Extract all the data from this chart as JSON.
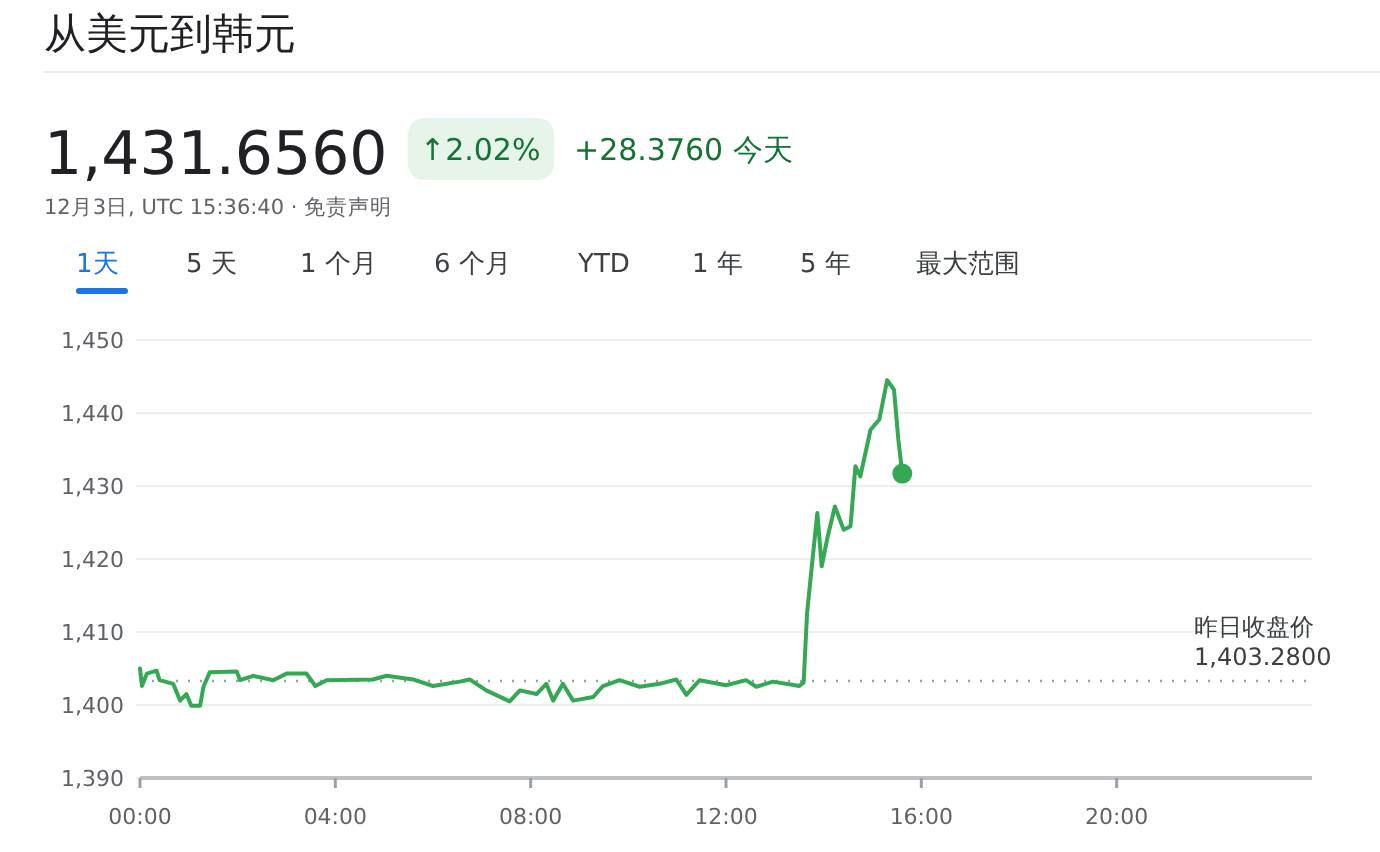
{
  "chart_data": {
    "type": "line",
    "title": "从美元到韩元",
    "annotations": [
      "1,431.6560",
      "↑2.02%",
      "+28.3760 今天",
      "12月3日, UTC 15:36:40 · 免责声明",
      "1天",
      "5 天",
      "1 个月",
      "6 个月",
      "YTD",
      "1 年",
      "5 年",
      "最大范围"
    ],
    "xlim": [
      0,
      24
    ],
    "ylim": [
      1390,
      1450
    ],
    "xticks": [
      {
        "value": 0,
        "label": "00:00"
      },
      {
        "value": 4,
        "label": "04:00"
      },
      {
        "value": 8,
        "label": "08:00"
      },
      {
        "value": 12,
        "label": "12:00"
      },
      {
        "value": 16,
        "label": "16:00"
      },
      {
        "value": 20,
        "label": "20:00"
      }
    ],
    "yticks": [
      {
        "value": 1390,
        "label": "1,390"
      },
      {
        "value": 1400,
        "label": "1,400"
      },
      {
        "value": 1410,
        "label": "1,410"
      },
      {
        "value": 1420,
        "label": "1,420"
      },
      {
        "value": 1430,
        "label": "1,430"
      },
      {
        "value": 1440,
        "label": "1,440"
      },
      {
        "value": 1450,
        "label": "1,450"
      }
    ],
    "grid": "y",
    "line_style": "solid",
    "ref_lines": [
      {
        "axis": "y",
        "value": 1403.28,
        "label": "昨日收盘价 1,403.2800",
        "color": "#9aa0a6",
        "line_style": "dotted"
      }
    ],
    "series": [
      {
        "marker": "none",
        "color": "#34a853",
        "x": [
          0,
          0.04,
          0.14,
          0.34,
          0.4,
          0.68,
          0.82,
          0.95,
          1.05,
          1.23,
          1.3,
          1.43,
          1.98,
          2.05,
          2.32,
          2.73,
          3.0,
          3.41,
          3.59,
          3.82,
          4.77,
          5.05,
          5.59,
          6.0,
          6.55,
          6.75,
          7.09,
          7.57,
          7.78,
          8.12,
          8.32,
          8.46,
          8.66,
          8.87,
          9.28,
          9.48,
          9.82,
          10.23,
          10.64,
          10.98,
          11.19,
          11.46,
          12.0,
          12.41,
          12.62,
          12.96,
          13.5,
          13.59,
          13.66,
          13.73,
          13.87,
          13.96,
          14.07,
          14.23,
          14.41,
          14.55,
          14.65,
          14.75,
          14.96,
          15.14,
          15.3,
          15.44,
          15.53,
          15.61
        ],
        "values": [
          1405.0,
          1402.6,
          1404.3,
          1404.7,
          1403.4,
          1402.9,
          1400.6,
          1401.5,
          1399.9,
          1399.9,
          1402.5,
          1404.5,
          1404.6,
          1403.4,
          1404.0,
          1403.4,
          1404.3,
          1404.3,
          1402.6,
          1403.4,
          1403.5,
          1404.0,
          1403.5,
          1402.6,
          1403.2,
          1403.5,
          1402.0,
          1400.5,
          1402.0,
          1401.5,
          1402.9,
          1400.6,
          1402.9,
          1400.6,
          1401.1,
          1402.6,
          1403.4,
          1402.5,
          1402.9,
          1403.5,
          1401.4,
          1403.4,
          1402.7,
          1403.4,
          1402.5,
          1403.2,
          1402.6,
          1403.1,
          1412.6,
          1417.2,
          1426.3,
          1419.0,
          1422.7,
          1427.2,
          1424.0,
          1424.5,
          1432.7,
          1431.3,
          1437.7,
          1439.1,
          1444.5,
          1443.2,
          1436.3,
          1431.7
        ]
      },
      {
        "type": "scatter",
        "marker": "circle",
        "color": "#34a853",
        "x": [
          15.61
        ],
        "values": [
          1431.7
        ]
      }
    ]
  }
}
